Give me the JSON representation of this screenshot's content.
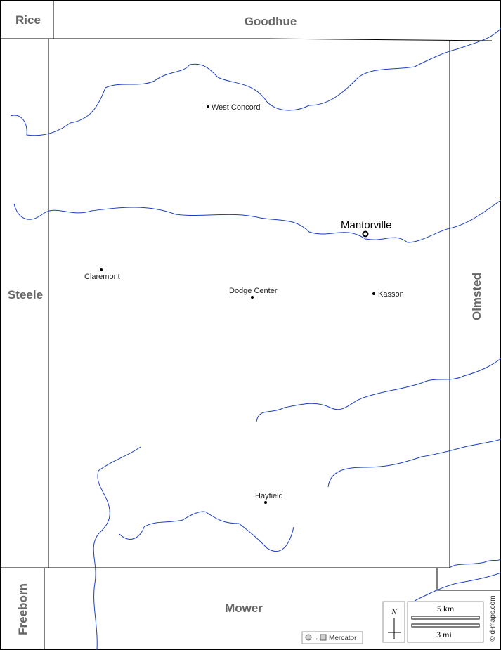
{
  "neighbors": {
    "rice": "Rice",
    "goodhue": "Goodhue",
    "steele": "Steele",
    "olmsted": "Olmsted",
    "freeborn": "Freeborn",
    "mower": "Mower"
  },
  "towns": {
    "west_concord": "West Concord",
    "mantorville": "Mantorville",
    "claremont": "Claremont",
    "dodge_center": "Dodge Center",
    "kasson": "Kasson",
    "hayfield": "Hayfield"
  },
  "legend": {
    "north": "N",
    "scale_km": "5 km",
    "scale_mi": "3 mi",
    "projection": "Mercator",
    "credit": "© d-maps.com"
  }
}
